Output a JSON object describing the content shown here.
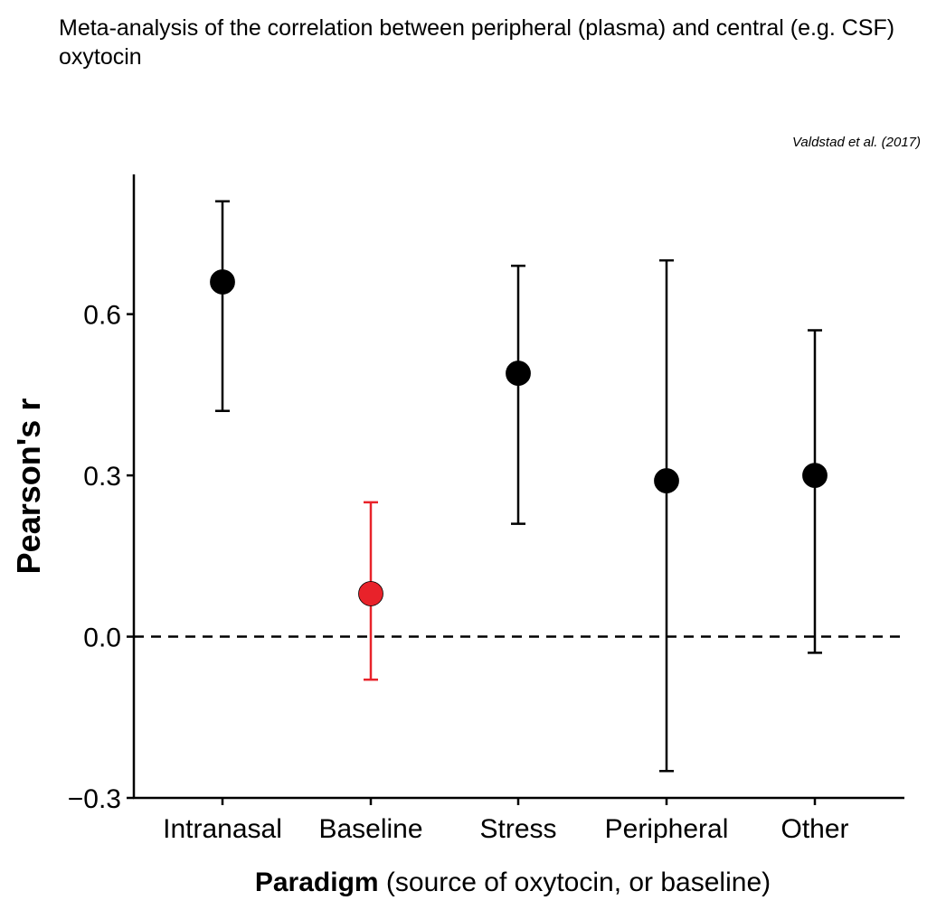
{
  "chart_data": {
    "type": "scatter",
    "title": "Meta-analysis of the correlation between peripheral (plasma) and central (e.g. CSF) oxytocin",
    "caption": "Valdstad et al. (2017)",
    "categories": [
      "Intranasal",
      "Baseline",
      "Stress",
      "Peripheral",
      "Other"
    ],
    "estimates": [
      0.66,
      0.08,
      0.49,
      0.29,
      0.3
    ],
    "ci_lower": [
      0.42,
      -0.08,
      0.21,
      -0.25,
      -0.03
    ],
    "ci_upper": [
      0.81,
      0.25,
      0.69,
      0.7,
      0.57
    ],
    "point_colors": [
      "#000000",
      "#e8222a",
      "#000000",
      "#000000",
      "#000000"
    ],
    "ylabel": "Pearson's r",
    "xlabel_bold": "Paradigm",
    "xlabel_rest": " (source of oxytocin, or baseline)",
    "ylim": [
      -0.3,
      0.86
    ],
    "yticks": [
      -0.3,
      0.0,
      0.3,
      0.6
    ],
    "ytick_labels": [
      "−0.3",
      "0.0",
      "0.3",
      "0.6"
    ],
    "reference_line": 0.0
  }
}
